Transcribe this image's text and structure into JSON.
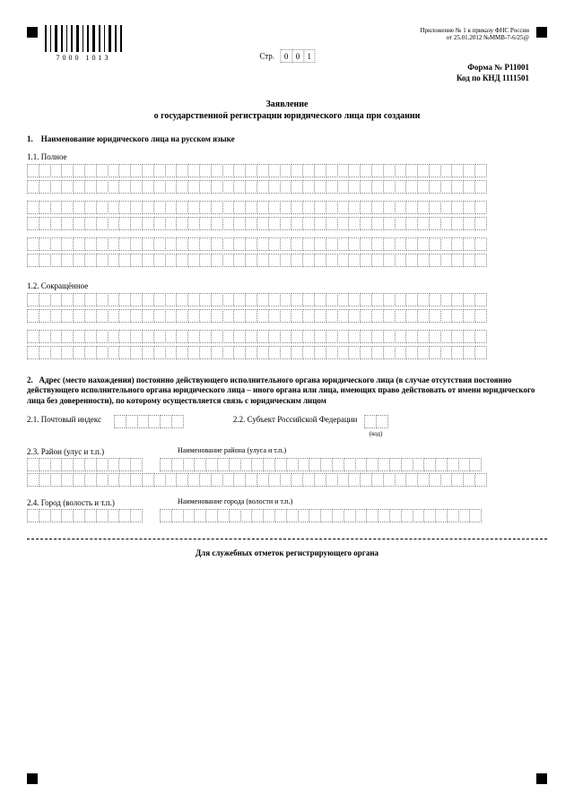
{
  "barcode_number": "7000 1013",
  "attachment": {
    "line1": "Приложение № 1 к приказу ФНС России",
    "line2": "от 25.01.2012  №ММВ-7-6/25@"
  },
  "page_label": "Стр.",
  "page_number": "001",
  "form_code1": "Форма № Р11001",
  "form_code2": "Код по КНД 1111501",
  "title_line1": "Заявление",
  "title_line2": "о государственной регистрации юридического лица при создании",
  "section1": {
    "num": "1.",
    "heading": "Наименование юридического лица на русском языке",
    "sub1": "1.1. Полное",
    "sub2": "1.2. Сокращённое",
    "full_rows": 6,
    "short_rows": 4,
    "cells_per_row": 40
  },
  "section2": {
    "num": "2.",
    "heading": "Адрес (место нахождения) постоянно действующего исполнительного органа юридического лица (в случае отсутствия постоянно действующего исполнительного органа юридического лица – иного органа или лица, имеющих право действовать от имени юридического лица без доверенности), по которому осуществляется связь с юридическим лицом",
    "s21_label": "2.1. Почтовый индекс",
    "s21_cells": 6,
    "s22_label": "2.2. Субъект Российской Федерации",
    "s22_cells": 2,
    "s22_note": "(код)",
    "s23_label": "2.3. Район (улус и т.п.)",
    "s23_sublabel": "Наименование района (улуса и т.п.)",
    "s23_left_cells": 10,
    "s23_right_cells_r1": 28,
    "s23_right_cells_r2": 40,
    "s24_label": "2.4. Город (волость и т.п.)",
    "s24_sublabel": "Наименование города (волости и т.п.)",
    "s24_left_cells": 10,
    "s24_right_cells": 28
  },
  "footer_note": "Для служебных отметок регистрирующего органа",
  "colors": {
    "text": "#000000",
    "cell_border": "#888888",
    "bg": "#ffffff"
  }
}
